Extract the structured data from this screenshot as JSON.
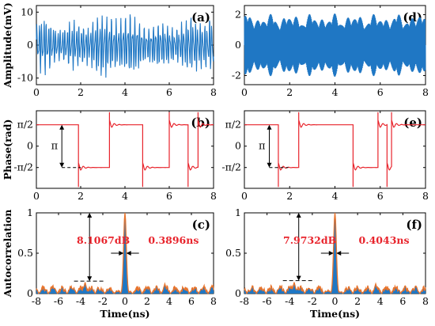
{
  "chart_data": [
    {
      "id": "a",
      "panel_label": "(a)",
      "type": "line",
      "ylabel": "Amplitude(mV)",
      "xlim": [
        0,
        8
      ],
      "ylim": [
        -12,
        12
      ],
      "xticks": [
        "0",
        "2",
        "4",
        "6",
        "8"
      ],
      "yticks": [
        "10",
        "0",
        "-10"
      ],
      "series": [
        {
          "color": "#1f77c4",
          "amplitude": 10,
          "description_values": {
            "min": -11,
            "max": 11
          }
        }
      ]
    },
    {
      "id": "d",
      "panel_label": "(d)",
      "type": "line",
      "xlim": [
        0,
        8
      ],
      "ylim": [
        -2.6,
        2.6
      ],
      "xticks": [
        "0",
        "2",
        "4",
        "6",
        "8"
      ],
      "yticks": [
        "2",
        "0",
        "-2"
      ],
      "series": [
        {
          "color": "#1f77c4",
          "amplitude": 2.1
        }
      ]
    },
    {
      "id": "b",
      "panel_label": "(b)",
      "type": "line",
      "ylabel": "Phase(rad)",
      "xlim": [
        0,
        8
      ],
      "ylim": [
        -3.1,
        2.6
      ],
      "xticks": [
        "0",
        "2",
        "4",
        "6",
        "8"
      ],
      "yticks": [
        "π/2",
        "0",
        "-π/2"
      ],
      "annotation": "π",
      "series": [
        {
          "color": "#e8242c",
          "levels": [
            [
              0,
              1.9,
              1.5708
            ],
            [
              1.9,
              3.3,
              -1.5708
            ],
            [
              3.3,
              4.8,
              1.5708
            ],
            [
              4.8,
              6.0,
              -1.5708
            ],
            [
              6.0,
              6.85,
              1.5708
            ],
            [
              6.85,
              7.3,
              -1.5708
            ],
            [
              7.3,
              8,
              1.5708
            ]
          ]
        }
      ]
    },
    {
      "id": "e",
      "panel_label": "(e)",
      "type": "line",
      "xlim": [
        0,
        8
      ],
      "ylim": [
        -3.1,
        2.6
      ],
      "xticks": [
        "0",
        "2",
        "4",
        "6",
        "8"
      ],
      "yticks": [
        "π/2",
        "0",
        "-π/2"
      ],
      "annotation": "π",
      "series": [
        {
          "color": "#e8242c",
          "levels": [
            [
              0,
              1.5,
              1.5708
            ],
            [
              1.5,
              2.4,
              -1.5708
            ],
            [
              2.4,
              4.8,
              1.5708
            ],
            [
              4.8,
              5.9,
              -1.5708
            ],
            [
              5.9,
              6.3,
              1.5708
            ],
            [
              6.3,
              6.5,
              -1.5708
            ],
            [
              6.5,
              8,
              1.5708
            ]
          ]
        }
      ]
    },
    {
      "id": "c",
      "panel_label": "(c)",
      "type": "area",
      "ylabel": "Autocorrelation",
      "xlabel": "Time(ns)",
      "xlim": [
        -8,
        8
      ],
      "ylim": [
        0,
        1
      ],
      "xticks": [
        "-8",
        "-6",
        "-4",
        "-2",
        "0",
        "2",
        "4",
        "6",
        "8"
      ],
      "yticks": [
        "1",
        "0.5",
        "0"
      ],
      "peak_width_label": "0.3896ns",
      "side_lobe_label": "8.1067dB",
      "series": [
        {
          "fill": "#1f77c4",
          "edge": "#e8742c",
          "peak": 1.0,
          "side_lobe_level": 0.155
        }
      ]
    },
    {
      "id": "f",
      "panel_label": "(f)",
      "type": "area",
      "xlabel": "Time(ns)",
      "xlim": [
        -8,
        8
      ],
      "ylim": [
        0,
        1
      ],
      "xticks": [
        "-8",
        "-6",
        "-4",
        "-2",
        "0",
        "2",
        "4",
        "6",
        "8"
      ],
      "yticks": [
        "1",
        "0.5",
        "0"
      ],
      "peak_width_label": "0.4043ns",
      "side_lobe_label": "7.9732dB",
      "series": [
        {
          "fill": "#1f77c4",
          "edge": "#e8742c",
          "peak": 1.0,
          "side_lobe_level": 0.16
        }
      ]
    }
  ]
}
